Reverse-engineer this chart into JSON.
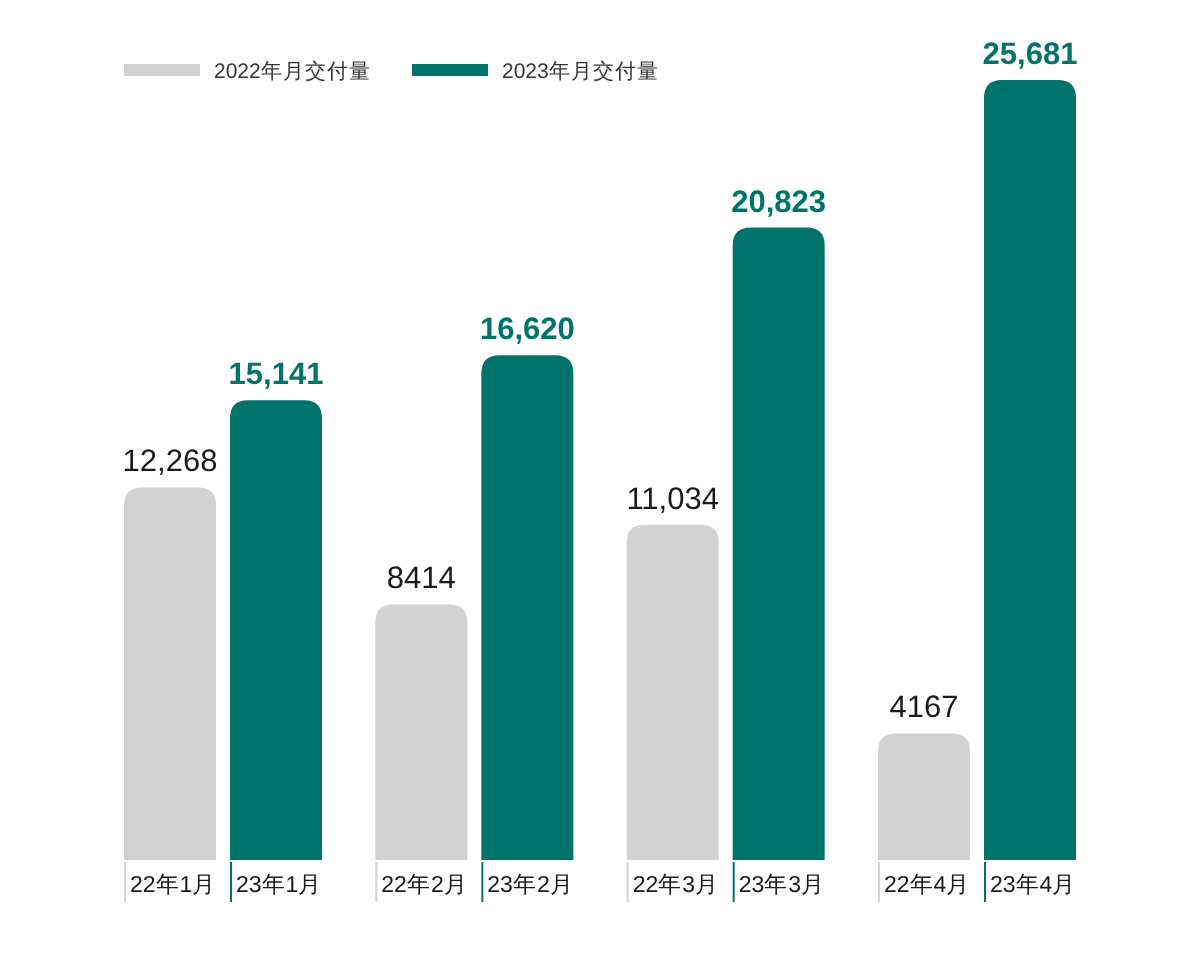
{
  "chart_data": {
    "type": "bar",
    "legend": "top left",
    "categories": [
      "22年1月",
      "23年1月",
      "22年2月",
      "23年2月",
      "22年3月",
      "23年3月",
      "22年4月",
      "23年4月"
    ],
    "series": [
      {
        "name": "2022年月交付量",
        "color": "#d2d2d2",
        "values": [
          12268,
          null,
          8414,
          null,
          11034,
          null,
          4167,
          null
        ],
        "value_labels": [
          "12,268",
          null,
          "8414",
          null,
          "11,034",
          null,
          "4167",
          null
        ]
      },
      {
        "name": "2023年月交付量",
        "color": "#00736a",
        "values": [
          null,
          15141,
          null,
          16620,
          null,
          20823,
          null,
          25681
        ],
        "value_labels": [
          null,
          "15,141",
          null,
          "16,620",
          null,
          "20,823",
          null,
          "25,681"
        ]
      }
    ]
  }
}
